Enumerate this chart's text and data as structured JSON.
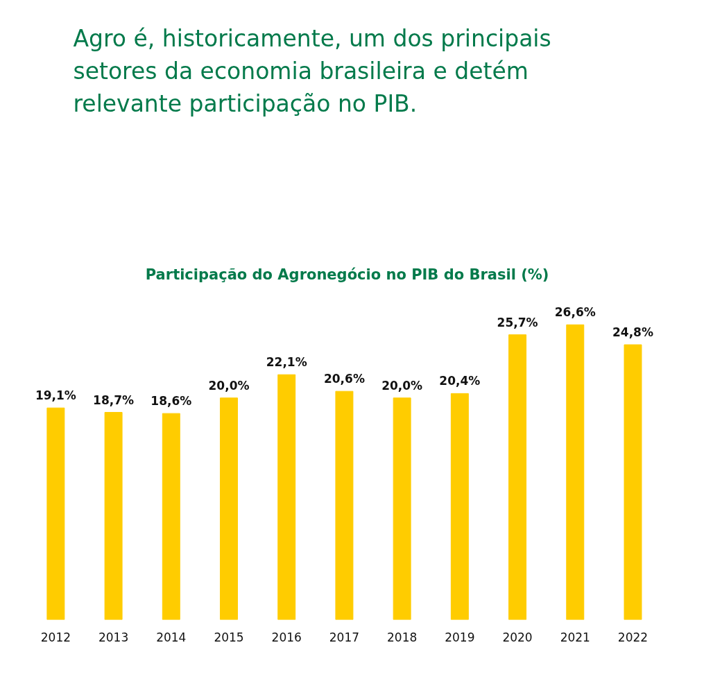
{
  "chart_data": {
    "type": "bar",
    "title": "Participação do Agronegócio no PIB do Brasil (%)",
    "annotations": [
      "Agro é, historicamente, um dos principais setores da economia brasileira e detém relevante participação no PIB."
    ],
    "categories": [
      "2012",
      "2013",
      "2014",
      "2015",
      "2016",
      "2017",
      "2018",
      "2019",
      "2020",
      "2021",
      "2022"
    ],
    "values": [
      19.1,
      18.7,
      18.6,
      20.0,
      22.1,
      20.6,
      20.0,
      20.4,
      25.7,
      26.6,
      24.8
    ],
    "value_labels": [
      "19,1%",
      "18,7%",
      "18,6%",
      "20,0%",
      "22,1%",
      "20,6%",
      "20,0%",
      "20,4%",
      "25,7%",
      "26,6%",
      "24,8%"
    ],
    "color": "#ffcc00",
    "tick_labels": "x",
    "grid": false
  }
}
